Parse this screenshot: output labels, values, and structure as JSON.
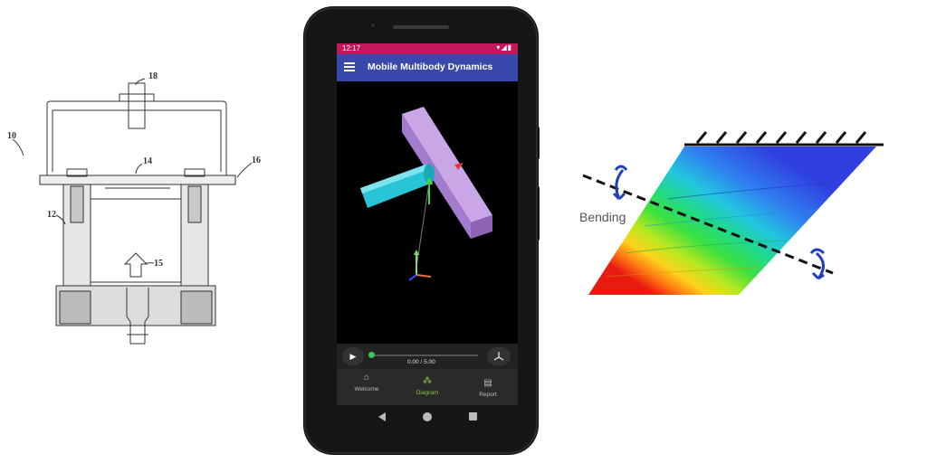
{
  "patent_drawing": {
    "ref_10": "10",
    "ref_12": "12",
    "ref_14": "14",
    "ref_15": "15",
    "ref_16": "16",
    "ref_18": "18"
  },
  "phone": {
    "status_time": "12:17",
    "status_icons": "▾◢▮",
    "app_title": "Mobile Multibody Dynamics",
    "menu_icon": "hamburger-menu-icon",
    "playback": {
      "play_icon": "▶",
      "time_text": "0.00 / 5.00",
      "progress": 0.0
    },
    "nav": [
      {
        "label": "Welcome",
        "icon": "⌂"
      },
      {
        "label": "Diagram",
        "icon": "⁂"
      },
      {
        "label": "Report",
        "icon": "▤"
      }
    ],
    "colors": {
      "status_bar": "#c2185b",
      "app_bar": "#3949ab",
      "active_nav": "#8bc34a"
    }
  },
  "bending_figure": {
    "label": "Bending"
  }
}
